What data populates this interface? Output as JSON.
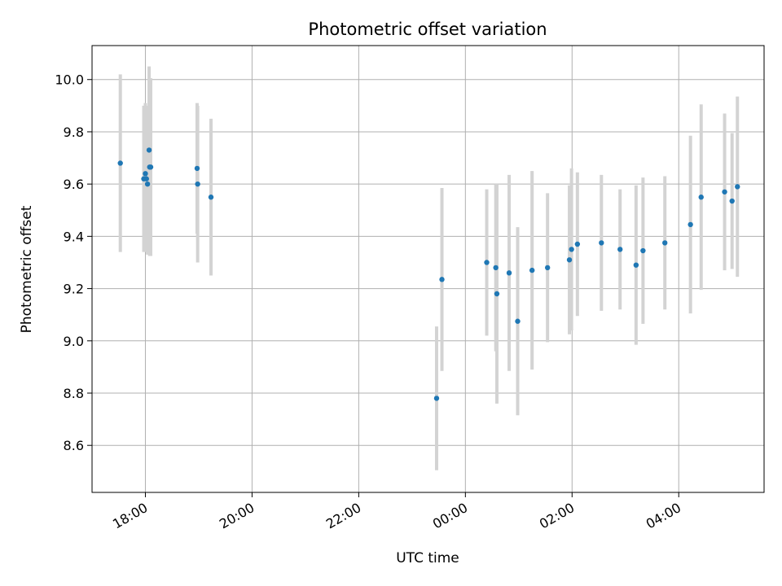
{
  "chart_data": {
    "type": "scatter",
    "title": "Photometric offset variation",
    "xlabel": "UTC time",
    "ylabel": "Photometric offset",
    "x_unit": "hours since 00:00 UTC",
    "xlim": [
      -7.0,
      5.6
    ],
    "ylim": [
      8.42,
      10.13
    ],
    "grid": true,
    "x_ticks": [
      -6,
      -4,
      -2,
      0,
      2,
      4
    ],
    "x_tick_labels": [
      "18:00",
      "20:00",
      "22:00",
      "00:00",
      "02:00",
      "04:00"
    ],
    "y_ticks": [
      8.6,
      8.8,
      9.0,
      9.2,
      9.4,
      9.6,
      9.8,
      10.0
    ],
    "y_tick_labels": [
      "8.6",
      "8.8",
      "9.0",
      "9.2",
      "9.4",
      "9.6",
      "9.8",
      "10.0"
    ],
    "colors": {
      "points": "#1f77b4",
      "errorbars": "#d3d3d3",
      "grid": "#b0b0b0",
      "axes": "#000000"
    },
    "points": [
      {
        "x": -6.47,
        "y": 9.68,
        "err": 0.34
      },
      {
        "x": -6.03,
        "y": 9.62,
        "err": 0.28
      },
      {
        "x": -6.0,
        "y": 9.64,
        "err": 0.27
      },
      {
        "x": -5.98,
        "y": 9.62,
        "err": 0.28
      },
      {
        "x": -5.96,
        "y": 9.6,
        "err": 0.27
      },
      {
        "x": -5.93,
        "y": 9.73,
        "err": 0.32
      },
      {
        "x": -5.92,
        "y": 9.665,
        "err": 0.34
      },
      {
        "x": -5.9,
        "y": 9.665,
        "err": 0.34
      },
      {
        "x": -5.03,
        "y": 9.66,
        "err": 0.25
      },
      {
        "x": -5.02,
        "y": 9.6,
        "err": 0.3
      },
      {
        "x": -4.77,
        "y": 9.55,
        "err": 0.3
      },
      {
        "x": -0.54,
        "y": 8.78,
        "err": 0.275
      },
      {
        "x": -0.44,
        "y": 9.235,
        "err": 0.35
      },
      {
        "x": 0.4,
        "y": 9.3,
        "err": 0.28
      },
      {
        "x": 0.57,
        "y": 9.28,
        "err": 0.32
      },
      {
        "x": 0.59,
        "y": 9.18,
        "err": 0.42
      },
      {
        "x": 0.82,
        "y": 9.26,
        "err": 0.375
      },
      {
        "x": 0.98,
        "y": 9.075,
        "err": 0.36
      },
      {
        "x": 1.25,
        "y": 9.27,
        "err": 0.38
      },
      {
        "x": 1.54,
        "y": 9.28,
        "err": 0.285
      },
      {
        "x": 1.95,
        "y": 9.31,
        "err": 0.285
      },
      {
        "x": 1.99,
        "y": 9.35,
        "err": 0.31
      },
      {
        "x": 2.1,
        "y": 9.37,
        "err": 0.275
      },
      {
        "x": 2.55,
        "y": 9.375,
        "err": 0.26
      },
      {
        "x": 2.9,
        "y": 9.35,
        "err": 0.23
      },
      {
        "x": 3.2,
        "y": 9.29,
        "err": 0.305
      },
      {
        "x": 3.33,
        "y": 9.345,
        "err": 0.28
      },
      {
        "x": 3.74,
        "y": 9.375,
        "err": 0.255
      },
      {
        "x": 4.22,
        "y": 9.445,
        "err": 0.34
      },
      {
        "x": 4.42,
        "y": 9.55,
        "err": 0.355
      },
      {
        "x": 4.86,
        "y": 9.57,
        "err": 0.3
      },
      {
        "x": 5.0,
        "y": 9.535,
        "err": 0.26
      },
      {
        "x": 5.1,
        "y": 9.59,
        "err": 0.345
      }
    ]
  }
}
